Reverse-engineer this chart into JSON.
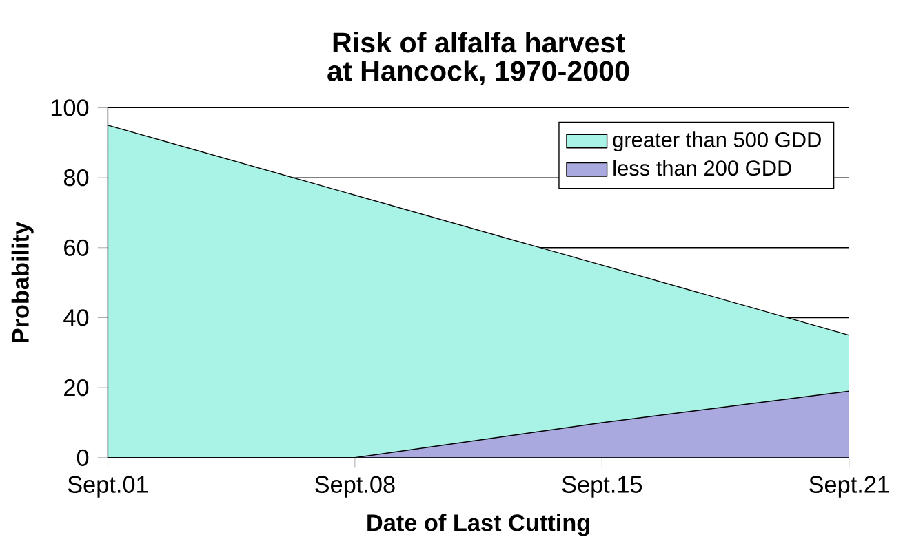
{
  "chart_data": {
    "type": "area",
    "title": "Risk of alfalfa harvest at Hancock, 1970-2000",
    "xlabel": "Date of Last Cutting",
    "ylabel": "Probability",
    "categories": [
      "Sept.01",
      "Sept.08",
      "Sept.15",
      "Sept.21"
    ],
    "series": [
      {
        "name": "greater than 500 GDD",
        "color": "#a8f2e6",
        "values": [
          95,
          75,
          55,
          35
        ]
      },
      {
        "name": "less than 200 GDD",
        "color": "#a9a9e0",
        "values": [
          0,
          0,
          10,
          19
        ]
      }
    ],
    "ylim": [
      0,
      100
    ],
    "yticks": [
      0,
      20,
      40,
      60,
      80,
      100
    ],
    "grid": "y",
    "legend": "top right"
  }
}
